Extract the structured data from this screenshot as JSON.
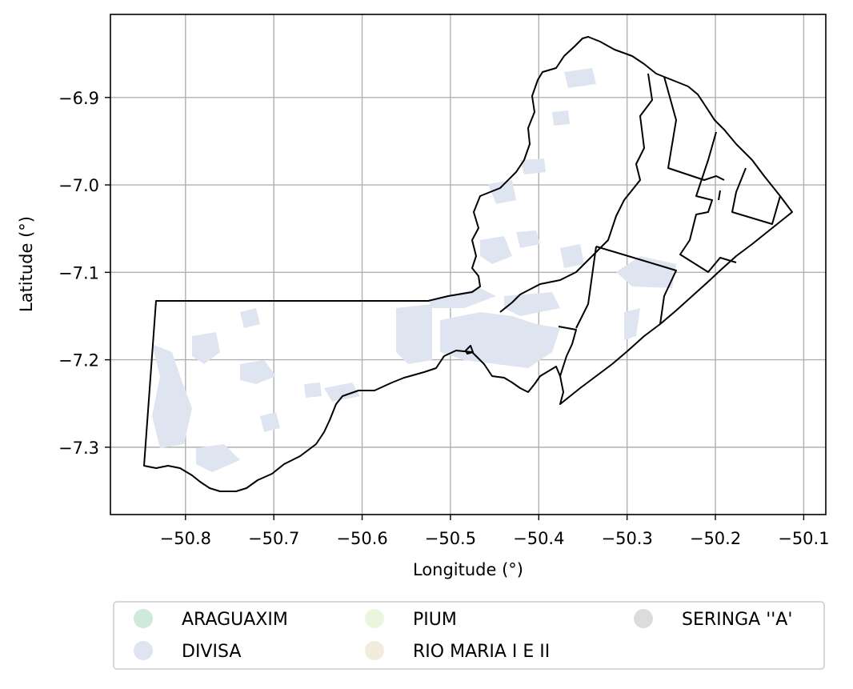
{
  "chart_data": {
    "type": "map",
    "xlabel": "Longitude (°)",
    "ylabel": "Latitude (°)",
    "xlim": [
      -50.885,
      -50.075
    ],
    "ylim": [
      -7.377,
      -6.805
    ],
    "xticks": [
      -50.8,
      -50.7,
      -50.6,
      -50.5,
      -50.4,
      -50.3,
      -50.2,
      -50.1
    ],
    "yticks": [
      -6.9,
      -7.0,
      -7.1,
      -7.2,
      -7.3
    ],
    "xtick_labels": [
      "−50.8",
      "−50.7",
      "−50.6",
      "−50.5",
      "−50.4",
      "−50.3",
      "−50.2",
      "−50.1"
    ],
    "ytick_labels": [
      "−6.9",
      "−7.0",
      "−7.1",
      "−7.2",
      "−7.3"
    ],
    "grid": true,
    "legend_placement": "bottom-center",
    "legend": [
      {
        "label": "ARAGUAXIM",
        "color": "#cdeadb"
      },
      {
        "label": "DIVISA",
        "color": "#dfe4f1"
      },
      {
        "label": "PIUM",
        "color": "#eaf5dd"
      },
      {
        "label": "RIO MARIA I E II",
        "color": "#f3ebdd"
      },
      {
        "label": "SERINGA ''A'",
        "color": "#dcdcdc"
      }
    ]
  }
}
